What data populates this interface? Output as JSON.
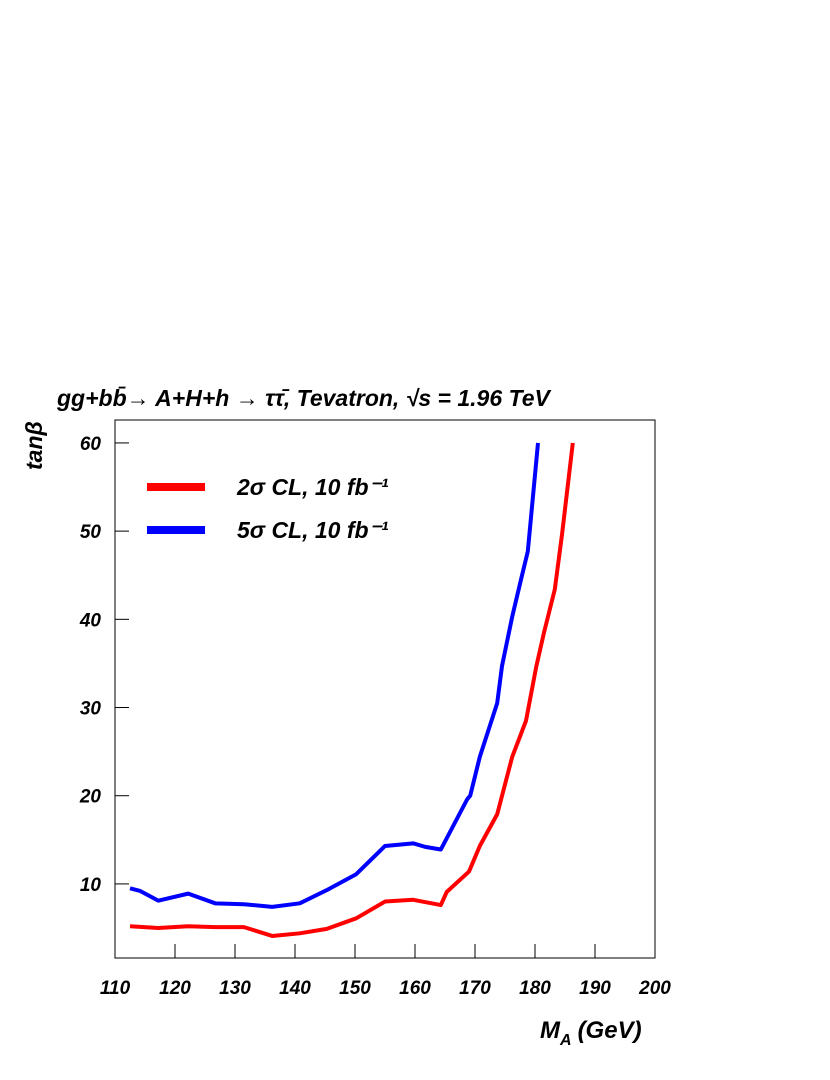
{
  "chart_data": {
    "type": "line",
    "title": "gg+bb̄→ A+H+h → ττ̄, Tevatron, √s = 1.96 TeV",
    "y_label": "tanβ",
    "x_label": {
      "main": "M",
      "sub": "A",
      "unit": "(GeV)"
    },
    "xlim": [
      110,
      200
    ],
    "xticks": [
      110,
      120,
      130,
      140,
      150,
      160,
      170,
      180,
      190,
      200
    ],
    "ylim": [
      1.6,
      62.6
    ],
    "yticks": [
      10,
      20,
      30,
      40,
      50,
      60
    ],
    "series": [
      {
        "name": "2σ CL, 10 fb⁻¹",
        "color": "#ff0000",
        "x": [
          112.5,
          117.2,
          122.2,
          126.7,
          131.5,
          136.2,
          140.8,
          145.3,
          150.2,
          155,
          159.7,
          164.3,
          165.3,
          169,
          170.8,
          173.7,
          176.2,
          178.5,
          180.2,
          181.5,
          183.3,
          184.5,
          186.3
        ],
        "values": [
          5.2,
          5.0,
          5.2,
          5.1,
          5.1,
          4.1,
          4.4,
          4.9,
          6.1,
          8.0,
          8.2,
          7.6,
          9.1,
          11.4,
          14.3,
          17.9,
          24.4,
          28.5,
          34.6,
          38.5,
          43.4,
          49.6,
          60
        ]
      },
      {
        "name": "5σ CL, 10 fb⁻¹",
        "color": "#0000ff",
        "x": [
          112.5,
          114.2,
          117.2,
          122.2,
          126.7,
          131.5,
          136.2,
          140.8,
          145.3,
          150.2,
          155,
          159.7,
          161.7,
          164.3,
          168.7,
          169.2,
          170.8,
          173.7,
          174.5,
          176.2,
          177.7,
          178.8,
          180.5
        ],
        "values": [
          9.5,
          9.2,
          8.1,
          8.9,
          7.8,
          7.7,
          7.4,
          7.8,
          9.3,
          11.1,
          14.3,
          14.6,
          14.2,
          13.9,
          19.6,
          20.0,
          24.4,
          30.5,
          34.7,
          40.3,
          44.6,
          47.7,
          60
        ]
      }
    ]
  }
}
